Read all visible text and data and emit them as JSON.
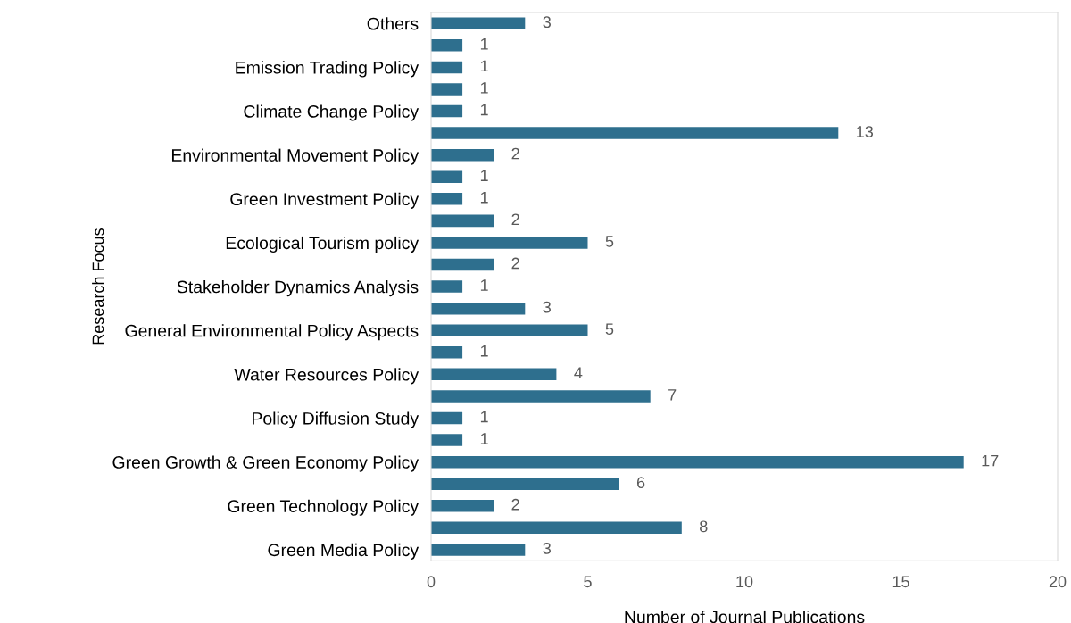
{
  "chart_data": {
    "type": "bar",
    "orientation": "horizontal",
    "xlabel": "Number of Journal Publications",
    "ylabel": "Research Focus",
    "categories": [
      "Others",
      null,
      "Emission Trading Policy",
      null,
      "Climate Change Policy",
      null,
      "Environmental Movement Policy",
      null,
      "Green Investment Policy",
      null,
      "Ecological Tourism policy",
      null,
      "Stakeholder Dynamics Analysis",
      null,
      "General Environmental Policy Aspects",
      null,
      "Water Resources Policy",
      null,
      "Policy Diffusion Study",
      null,
      "Green Growth & Green Economy Policy",
      null,
      "Green Technology Policy",
      null,
      "Green Media Policy"
    ],
    "values": [
      3,
      1,
      1,
      1,
      1,
      13,
      2,
      1,
      1,
      2,
      5,
      2,
      1,
      3,
      5,
      1,
      4,
      7,
      1,
      1,
      17,
      6,
      2,
      8,
      3
    ],
    "color": "#2e6f8e",
    "xlim": [
      0,
      20
    ],
    "xticks": [
      0,
      5,
      10,
      15,
      20
    ],
    "data_labels": true,
    "grid": false,
    "legend": false
  }
}
